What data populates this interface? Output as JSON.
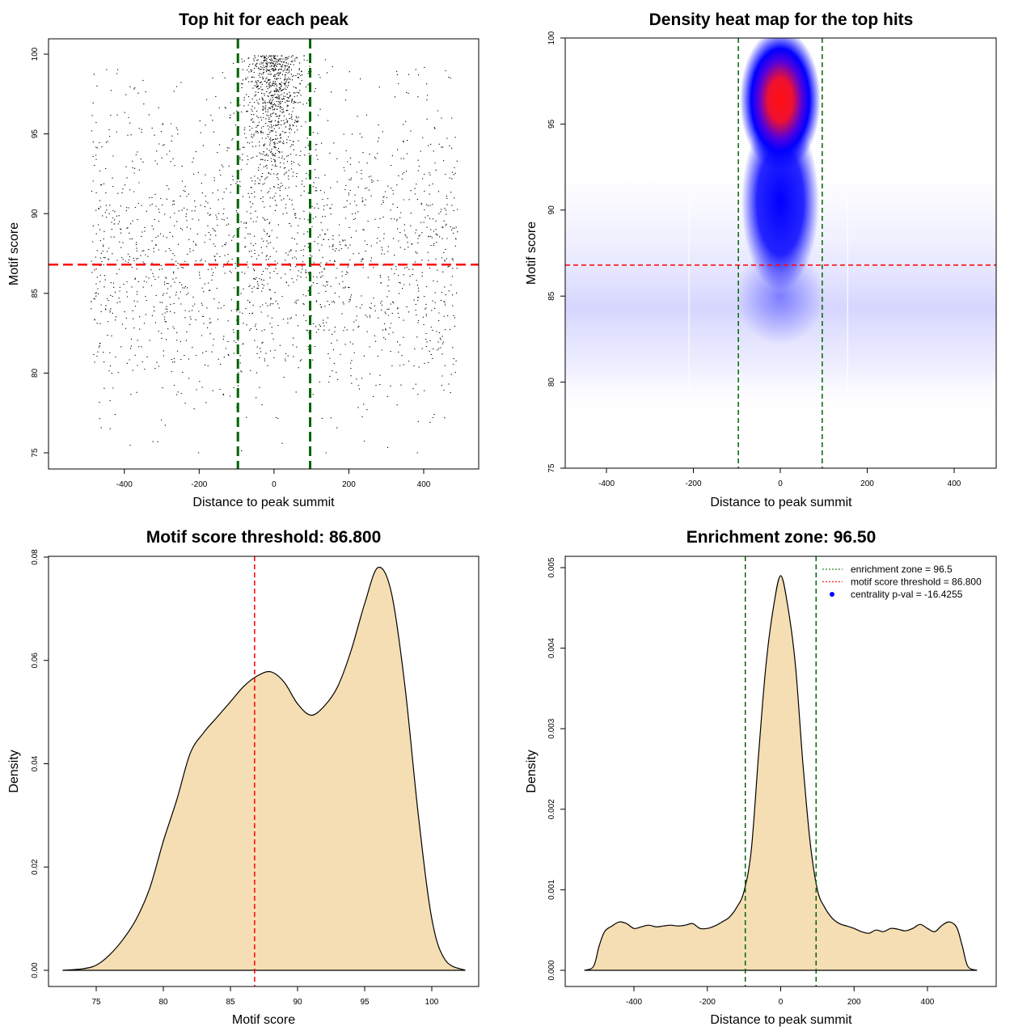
{
  "chart_data": [
    {
      "id": "p1",
      "type": "scatter",
      "title": "Top hit for each peak",
      "xlabel": "Distance to peak summit",
      "ylabel": "Motif score",
      "xlim": [
        -500,
        500
      ],
      "ylim": [
        75,
        100
      ],
      "xticks": [
        -400,
        -200,
        0,
        200,
        400
      ],
      "yticks": [
        75,
        80,
        85,
        90,
        95,
        100
      ],
      "vlines": [
        -96.5,
        96.5
      ],
      "hline": 86.8,
      "point_count": 6500,
      "colors": {
        "points": "#000000",
        "vlines": "#006400",
        "hline": "#ff0000"
      }
    },
    {
      "id": "p2",
      "type": "heatmap",
      "title": "Density heat map for the top hits",
      "xlabel": "Distance to peak summit",
      "ylabel": "Motif score",
      "xlim": [
        -500,
        500
      ],
      "ylim": [
        75,
        100
      ],
      "xticks": [
        -400,
        -200,
        0,
        200,
        400
      ],
      "yticks": [
        75,
        80,
        85,
        90,
        95,
        100
      ],
      "vlines": [
        -96.5,
        96.5
      ],
      "hline": 86.8,
      "peak": {
        "x": 0,
        "y": 96.4
      },
      "colors": {
        "low": "#ffffff",
        "mid": "#0000ff",
        "high": "#ff0000",
        "vlines": "#006400",
        "hline": "#ff0000"
      }
    },
    {
      "id": "p3",
      "type": "area",
      "title": "Motif score threshold: 86.800",
      "xlabel": "Motif score",
      "ylabel": "Density",
      "xlim": [
        72.5,
        102.5
      ],
      "ylim": [
        0,
        0.08
      ],
      "xticks": [
        75,
        80,
        85,
        90,
        95,
        100
      ],
      "yticks": [
        0.0,
        0.02,
        0.04,
        0.06,
        0.08
      ],
      "ytick_labels": [
        "0.00",
        "0.02",
        "0.04",
        "0.06",
        "0.08"
      ],
      "vline": 86.8,
      "x": [
        72.5,
        74,
        75,
        76,
        77,
        78,
        79,
        80,
        81,
        82,
        83,
        84,
        85,
        86,
        87,
        88,
        89,
        90,
        91,
        92,
        93,
        94,
        95,
        96,
        97,
        98,
        99,
        100,
        101,
        102.5
      ],
      "y": [
        0.0,
        0.0003,
        0.001,
        0.003,
        0.006,
        0.01,
        0.016,
        0.025,
        0.033,
        0.042,
        0.046,
        0.049,
        0.052,
        0.055,
        0.057,
        0.0578,
        0.0558,
        0.0516,
        0.0494,
        0.0512,
        0.055,
        0.062,
        0.071,
        0.078,
        0.073,
        0.055,
        0.03,
        0.01,
        0.002,
        0.0
      ],
      "colors": {
        "fill": "#f5deb3",
        "line": "#000000",
        "vline": "#ff0000"
      }
    },
    {
      "id": "p4",
      "type": "area",
      "title": "Enrichment zone: 96.50",
      "xlabel": "Distance to peak summit",
      "ylabel": "Density",
      "xlim": [
        -550,
        550
      ],
      "ylim": [
        0,
        0.005
      ],
      "xticks": [
        -400,
        -200,
        0,
        200,
        400
      ],
      "yticks": [
        0.0,
        0.001,
        0.002,
        0.003,
        0.004,
        0.005
      ],
      "ytick_labels": [
        "0.000",
        "0.001",
        "0.002",
        "0.003",
        "0.004",
        "0.005"
      ],
      "vlines": [
        -96.5,
        96.5
      ],
      "x": [
        -535,
        -510,
        -495,
        -480,
        -460,
        -440,
        -420,
        -400,
        -380,
        -360,
        -340,
        -320,
        -300,
        -280,
        -260,
        -240,
        -220,
        -200,
        -180,
        -160,
        -140,
        -120,
        -100,
        -80,
        -60,
        -40,
        -20,
        0,
        20,
        40,
        60,
        80,
        100,
        120,
        140,
        160,
        180,
        200,
        220,
        240,
        260,
        280,
        300,
        320,
        340,
        360,
        380,
        400,
        420,
        440,
        460,
        480,
        495,
        510,
        535
      ],
      "y": [
        0.0,
        5e-05,
        0.0003,
        0.00048,
        0.00055,
        0.0006,
        0.00058,
        0.00052,
        0.00054,
        0.00056,
        0.00054,
        0.00055,
        0.00056,
        0.00055,
        0.00056,
        0.00058,
        0.00052,
        0.00052,
        0.00055,
        0.0006,
        0.00066,
        0.00078,
        0.00098,
        0.0015,
        0.0027,
        0.0038,
        0.0045,
        0.0049,
        0.0045,
        0.0038,
        0.0026,
        0.0016,
        0.001,
        0.00078,
        0.00065,
        0.00058,
        0.00055,
        0.00052,
        0.00048,
        0.00046,
        0.0005,
        0.00048,
        0.00052,
        0.00051,
        0.00049,
        0.00052,
        0.00057,
        0.00052,
        0.00048,
        0.00056,
        0.0006,
        0.00053,
        0.0003,
        5e-05,
        0.0
      ],
      "colors": {
        "fill": "#f5deb3",
        "line": "#000000",
        "vlines": "#006400"
      },
      "legend": {
        "placement": "top-right",
        "entries": [
          {
            "label": "enrichment zone = 96.5",
            "symbol": "dotted-line",
            "color": "#006400"
          },
          {
            "label": "motif score threshold = 86.800",
            "symbol": "dotted-line",
            "color": "#ff0000"
          },
          {
            "label": "centrality p-val = -16.4255",
            "symbol": "dot",
            "color": "#0000ff"
          }
        ]
      }
    }
  ]
}
